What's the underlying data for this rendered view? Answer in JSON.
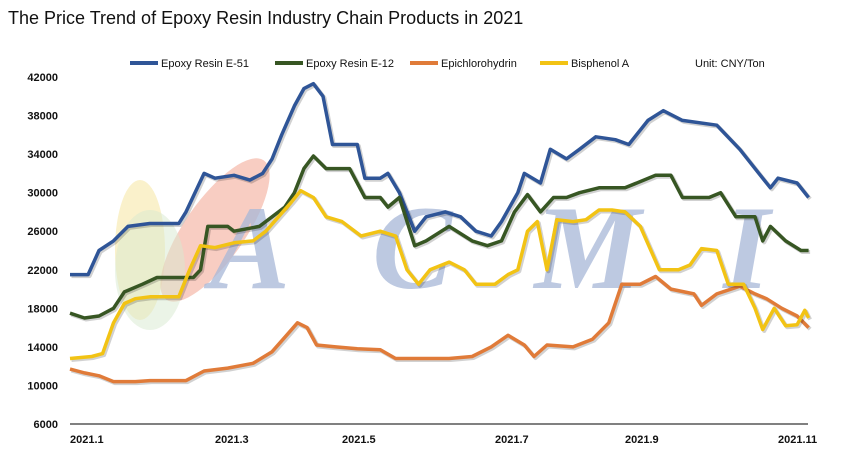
{
  "chart_data": {
    "type": "line",
    "title": "The Price Trend of Epoxy Resin Industry Chain Products in 2021",
    "unit": "Unit: CNY/Ton",
    "xlabel": "",
    "ylabel": "",
    "ylim": [
      6000,
      42000
    ],
    "yticks": [
      "42000",
      "38000",
      "34000",
      "30000",
      "26000",
      "22000",
      "18000",
      "14000",
      "10000",
      "6000"
    ],
    "xticks": [
      {
        "label": "2021.1",
        "month": 1
      },
      {
        "label": "2021.3",
        "month": 3
      },
      {
        "label": "2021.5",
        "month": 5
      },
      {
        "label": "2021.7",
        "month": 7
      },
      {
        "label": "2021.9",
        "month": 9
      },
      {
        "label": "2021.11",
        "month": 11
      }
    ],
    "legend_position": "top",
    "grid": false,
    "watermark": "ACMI",
    "series": [
      {
        "name": "Epoxy Resin E-51",
        "color": "#2f5597",
        "points": [
          [
            1.0,
            21500
          ],
          [
            1.25,
            21500
          ],
          [
            1.4,
            24000
          ],
          [
            1.6,
            25000
          ],
          [
            1.8,
            26500
          ],
          [
            2.1,
            26800
          ],
          [
            2.5,
            26800
          ],
          [
            2.6,
            28000
          ],
          [
            2.85,
            32000
          ],
          [
            3.0,
            31500
          ],
          [
            3.3,
            31800
          ],
          [
            3.55,
            31300
          ],
          [
            3.75,
            32000
          ],
          [
            3.9,
            33500
          ],
          [
            4.05,
            36000
          ],
          [
            4.25,
            39000
          ],
          [
            4.4,
            40800
          ],
          [
            4.55,
            41300
          ],
          [
            4.7,
            40000
          ],
          [
            4.85,
            35000
          ],
          [
            5.2,
            35000
          ],
          [
            5.3,
            31500
          ],
          [
            5.5,
            31500
          ],
          [
            5.6,
            32000
          ],
          [
            5.75,
            30000
          ],
          [
            5.95,
            26000
          ],
          [
            6.1,
            27500
          ],
          [
            6.35,
            28000
          ],
          [
            6.55,
            27500
          ],
          [
            6.75,
            26000
          ],
          [
            6.95,
            25500
          ],
          [
            7.1,
            27000
          ],
          [
            7.35,
            30000
          ],
          [
            7.45,
            32000
          ],
          [
            7.7,
            31000
          ],
          [
            7.85,
            34500
          ],
          [
            8.1,
            33500
          ],
          [
            8.3,
            34500
          ],
          [
            8.55,
            35800
          ],
          [
            8.85,
            35500
          ],
          [
            9.05,
            35000
          ],
          [
            9.3,
            37500
          ],
          [
            9.5,
            38500
          ],
          [
            9.75,
            37500
          ],
          [
            10.2,
            37000
          ],
          [
            10.5,
            34500
          ],
          [
            10.75,
            32000
          ],
          [
            10.9,
            30500
          ],
          [
            11.0,
            31500
          ],
          [
            11.25,
            31000
          ],
          [
            11.4,
            29500
          ]
        ]
      },
      {
        "name": "Epoxy Resin E-12",
        "color": "#375623",
        "points": [
          [
            1.0,
            17500
          ],
          [
            1.2,
            17000
          ],
          [
            1.4,
            17200
          ],
          [
            1.6,
            18000
          ],
          [
            1.75,
            19700
          ],
          [
            2.0,
            20500
          ],
          [
            2.2,
            21200
          ],
          [
            2.7,
            21200
          ],
          [
            2.8,
            22000
          ],
          [
            2.9,
            26500
          ],
          [
            3.2,
            26500
          ],
          [
            3.3,
            26000
          ],
          [
            3.7,
            26500
          ],
          [
            3.9,
            27500
          ],
          [
            4.1,
            28500
          ],
          [
            4.25,
            30000
          ],
          [
            4.4,
            32500
          ],
          [
            4.55,
            33800
          ],
          [
            4.75,
            32500
          ],
          [
            5.1,
            32500
          ],
          [
            5.3,
            29500
          ],
          [
            5.5,
            29500
          ],
          [
            5.6,
            28500
          ],
          [
            5.75,
            29500
          ],
          [
            5.95,
            24500
          ],
          [
            6.1,
            25000
          ],
          [
            6.4,
            26500
          ],
          [
            6.7,
            25000
          ],
          [
            6.9,
            24500
          ],
          [
            7.1,
            25000
          ],
          [
            7.3,
            28000
          ],
          [
            7.5,
            29800
          ],
          [
            7.7,
            28000
          ],
          [
            7.9,
            29500
          ],
          [
            8.1,
            29500
          ],
          [
            8.3,
            30000
          ],
          [
            8.6,
            30500
          ],
          [
            9.0,
            30500
          ],
          [
            9.4,
            31800
          ],
          [
            9.6,
            31800
          ],
          [
            9.75,
            29500
          ],
          [
            10.1,
            29500
          ],
          [
            10.25,
            30000
          ],
          [
            10.45,
            27500
          ],
          [
            10.7,
            27500
          ],
          [
            10.8,
            25000
          ],
          [
            10.9,
            26500
          ],
          [
            11.1,
            25000
          ],
          [
            11.3,
            24000
          ],
          [
            11.4,
            24000
          ]
        ]
      },
      {
        "name": "Epichlorohydrin",
        "color": "#e07b39",
        "points": [
          [
            1.0,
            11700
          ],
          [
            1.2,
            11300
          ],
          [
            1.4,
            11000
          ],
          [
            1.6,
            10400
          ],
          [
            1.9,
            10400
          ],
          [
            2.1,
            10500
          ],
          [
            2.6,
            10500
          ],
          [
            2.85,
            11500
          ],
          [
            3.2,
            11800
          ],
          [
            3.6,
            12300
          ],
          [
            3.9,
            13500
          ],
          [
            4.1,
            15000
          ],
          [
            4.3,
            16500
          ],
          [
            4.45,
            16000
          ],
          [
            4.6,
            14200
          ],
          [
            4.9,
            14000
          ],
          [
            5.2,
            13800
          ],
          [
            5.5,
            13700
          ],
          [
            5.7,
            12800
          ],
          [
            6.0,
            12800
          ],
          [
            6.4,
            12800
          ],
          [
            6.7,
            13000
          ],
          [
            6.95,
            14000
          ],
          [
            7.2,
            15200
          ],
          [
            7.45,
            14200
          ],
          [
            7.6,
            13000
          ],
          [
            7.8,
            14200
          ],
          [
            8.2,
            14000
          ],
          [
            8.5,
            14800
          ],
          [
            8.75,
            16500
          ],
          [
            8.95,
            20500
          ],
          [
            9.2,
            20500
          ],
          [
            9.4,
            21300
          ],
          [
            9.6,
            20000
          ],
          [
            9.9,
            19500
          ],
          [
            10.0,
            18300
          ],
          [
            10.2,
            19500
          ],
          [
            10.5,
            20300
          ],
          [
            10.7,
            19500
          ],
          [
            10.85,
            19000
          ],
          [
            11.05,
            18000
          ],
          [
            11.25,
            17200
          ],
          [
            11.4,
            16000
          ]
        ]
      },
      {
        "name": "Bisphenol A",
        "color": "#f2c314",
        "points": [
          [
            1.0,
            12800
          ],
          [
            1.3,
            13000
          ],
          [
            1.45,
            13300
          ],
          [
            1.6,
            16500
          ],
          [
            1.75,
            18500
          ],
          [
            1.9,
            19000
          ],
          [
            2.1,
            19200
          ],
          [
            2.5,
            19200
          ],
          [
            2.65,
            22000
          ],
          [
            2.8,
            24500
          ],
          [
            3.0,
            24300
          ],
          [
            3.3,
            24800
          ],
          [
            3.6,
            25000
          ],
          [
            3.8,
            26000
          ],
          [
            4.0,
            27500
          ],
          [
            4.2,
            29000
          ],
          [
            4.35,
            30200
          ],
          [
            4.55,
            29500
          ],
          [
            4.75,
            27500
          ],
          [
            5.0,
            27000
          ],
          [
            5.25,
            25500
          ],
          [
            5.5,
            26000
          ],
          [
            5.7,
            25500
          ],
          [
            5.85,
            22000
          ],
          [
            6.0,
            20500
          ],
          [
            6.15,
            22000
          ],
          [
            6.4,
            22800
          ],
          [
            6.6,
            22000
          ],
          [
            6.75,
            20500
          ],
          [
            7.0,
            20500
          ],
          [
            7.2,
            21500
          ],
          [
            7.35,
            22000
          ],
          [
            7.5,
            26000
          ],
          [
            7.65,
            27000
          ],
          [
            7.8,
            22000
          ],
          [
            7.95,
            27200
          ],
          [
            8.2,
            27000
          ],
          [
            8.4,
            27200
          ],
          [
            8.6,
            28200
          ],
          [
            8.8,
            28200
          ],
          [
            9.0,
            28000
          ],
          [
            9.2,
            26500
          ],
          [
            9.45,
            22000
          ],
          [
            9.7,
            22000
          ],
          [
            9.85,
            22500
          ],
          [
            10.0,
            24200
          ],
          [
            10.2,
            24000
          ],
          [
            10.35,
            20500
          ],
          [
            10.55,
            20500
          ],
          [
            10.7,
            18000
          ],
          [
            10.8,
            15800
          ],
          [
            10.95,
            18000
          ],
          [
            11.1,
            16200
          ],
          [
            11.25,
            16300
          ],
          [
            11.35,
            17800
          ],
          [
            11.4,
            17000
          ]
        ]
      }
    ]
  }
}
